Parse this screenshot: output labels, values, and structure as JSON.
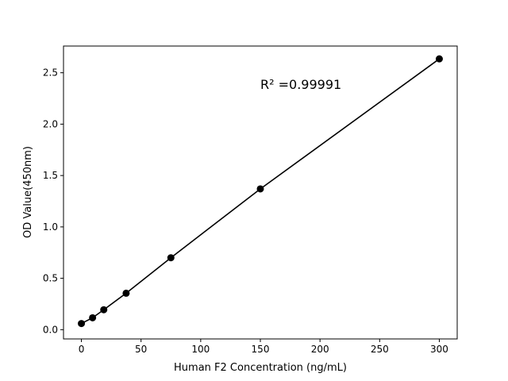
{
  "chart_data": {
    "type": "line",
    "title": "",
    "xlabel": "Human F2 Concentration (ng/mL)",
    "ylabel": "OD Value(450nm)",
    "xlim": [
      -15,
      315
    ],
    "ylim": [
      -0.09,
      2.76
    ],
    "xticks": [
      0,
      50,
      100,
      150,
      200,
      250,
      300
    ],
    "yticks": [
      0.0,
      0.5,
      1.0,
      1.5,
      2.0,
      2.5
    ],
    "xtick_labels": [
      "0",
      "50",
      "100",
      "150",
      "200",
      "250",
      "300"
    ],
    "ytick_labels": [
      "0.0",
      "0.5",
      "1.0",
      "1.5",
      "2.0",
      "2.5"
    ],
    "grid": false,
    "annotation": "R² =0.99991",
    "annotation_pos": [
      150,
      2.38
    ],
    "series": [
      {
        "color": "#000000",
        "marker": "circle",
        "x": [
          0,
          9.375,
          18.75,
          37.5,
          75,
          150,
          300
        ],
        "y": [
          0.06,
          0.116,
          0.194,
          0.355,
          0.7,
          1.37,
          2.635
        ]
      }
    ]
  }
}
